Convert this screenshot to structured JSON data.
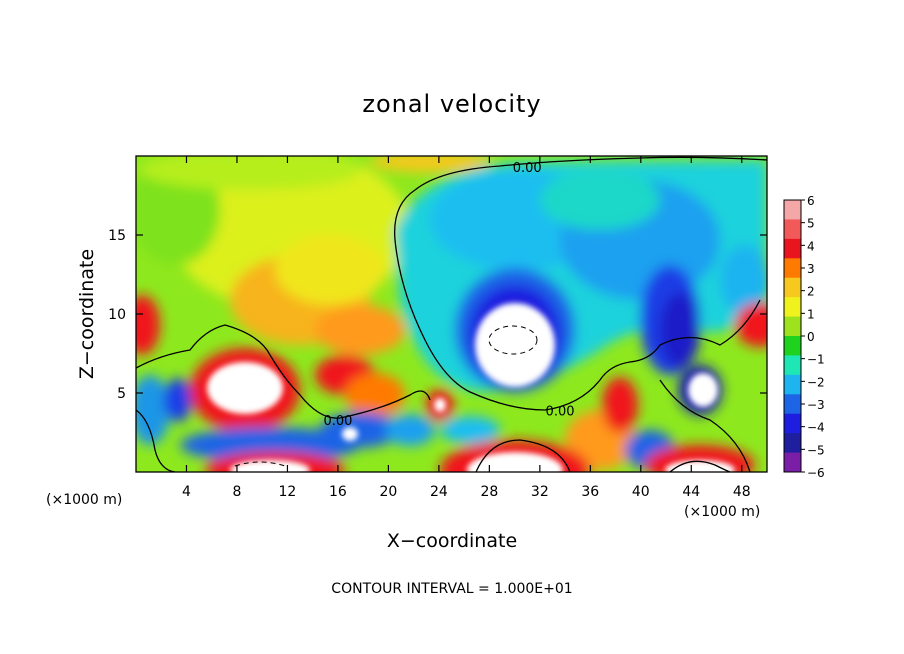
{
  "chart_data": {
    "type": "heatmap",
    "title": "zonal velocity",
    "xlabel": "X−coordinate",
    "ylabel": "Z−coordinate",
    "x_unit_label": "(×1000 m)",
    "x_ticks": [
      4,
      8,
      12,
      16,
      20,
      24,
      28,
      32,
      36,
      40,
      44,
      48
    ],
    "y_ticks": [
      5,
      10,
      15
    ],
    "xlim": [
      0,
      50
    ],
    "ylim": [
      0,
      20
    ],
    "colorbar": {
      "levels": [
        6,
        5,
        4,
        3,
        2,
        1,
        0,
        -1,
        -2,
        -3,
        -4,
        -5,
        -6
      ],
      "labels": [
        "6",
        "5",
        "4",
        "3",
        "2",
        "1",
        "0",
        "−1",
        "−2",
        "−3",
        "−4",
        "−5",
        "−6"
      ],
      "colors": [
        "#f4a7a7",
        "#f25a5a",
        "#e8141e",
        "#ff7a00",
        "#f7c81e",
        "#f0f21e",
        "#9ee21e",
        "#1ed21e",
        "#1ee6b4",
        "#1eb4f0",
        "#1e64e6",
        "#1e1ee0",
        "#1e1e9e",
        "#7a1ea8"
      ]
    },
    "contour_labels": [
      {
        "text": "0.00",
        "x": 31.0,
        "y": 19.3
      },
      {
        "text": "0.00",
        "x": 16.0,
        "y": 3.3
      },
      {
        "text": "0.00",
        "x": 33.6,
        "y": 3.9
      }
    ],
    "features": [
      {
        "kind": "positive-core",
        "x": 9.0,
        "y": 5.2,
        "value": 6
      },
      {
        "kind": "positive-core",
        "x": 30.0,
        "y": 1.0,
        "value": 6
      },
      {
        "kind": "positive-core",
        "x": 43.5,
        "y": 0.8,
        "value": 6
      },
      {
        "kind": "positive-core",
        "x": 10.0,
        "y": 0.6,
        "value": 6
      },
      {
        "kind": "negative-core",
        "x": 29.5,
        "y": 8.5,
        "value": -6
      },
      {
        "kind": "negative-core",
        "x": 44.8,
        "y": 5.2,
        "value": -6
      },
      {
        "kind": "positive-edge",
        "x": 0.3,
        "y": 9.6,
        "value": 5
      },
      {
        "kind": "positive-edge",
        "x": 49.6,
        "y": 9.6,
        "value": 5
      }
    ],
    "contour_interval_text": "CONTOUR INTERVAL = 1.000E+01"
  }
}
